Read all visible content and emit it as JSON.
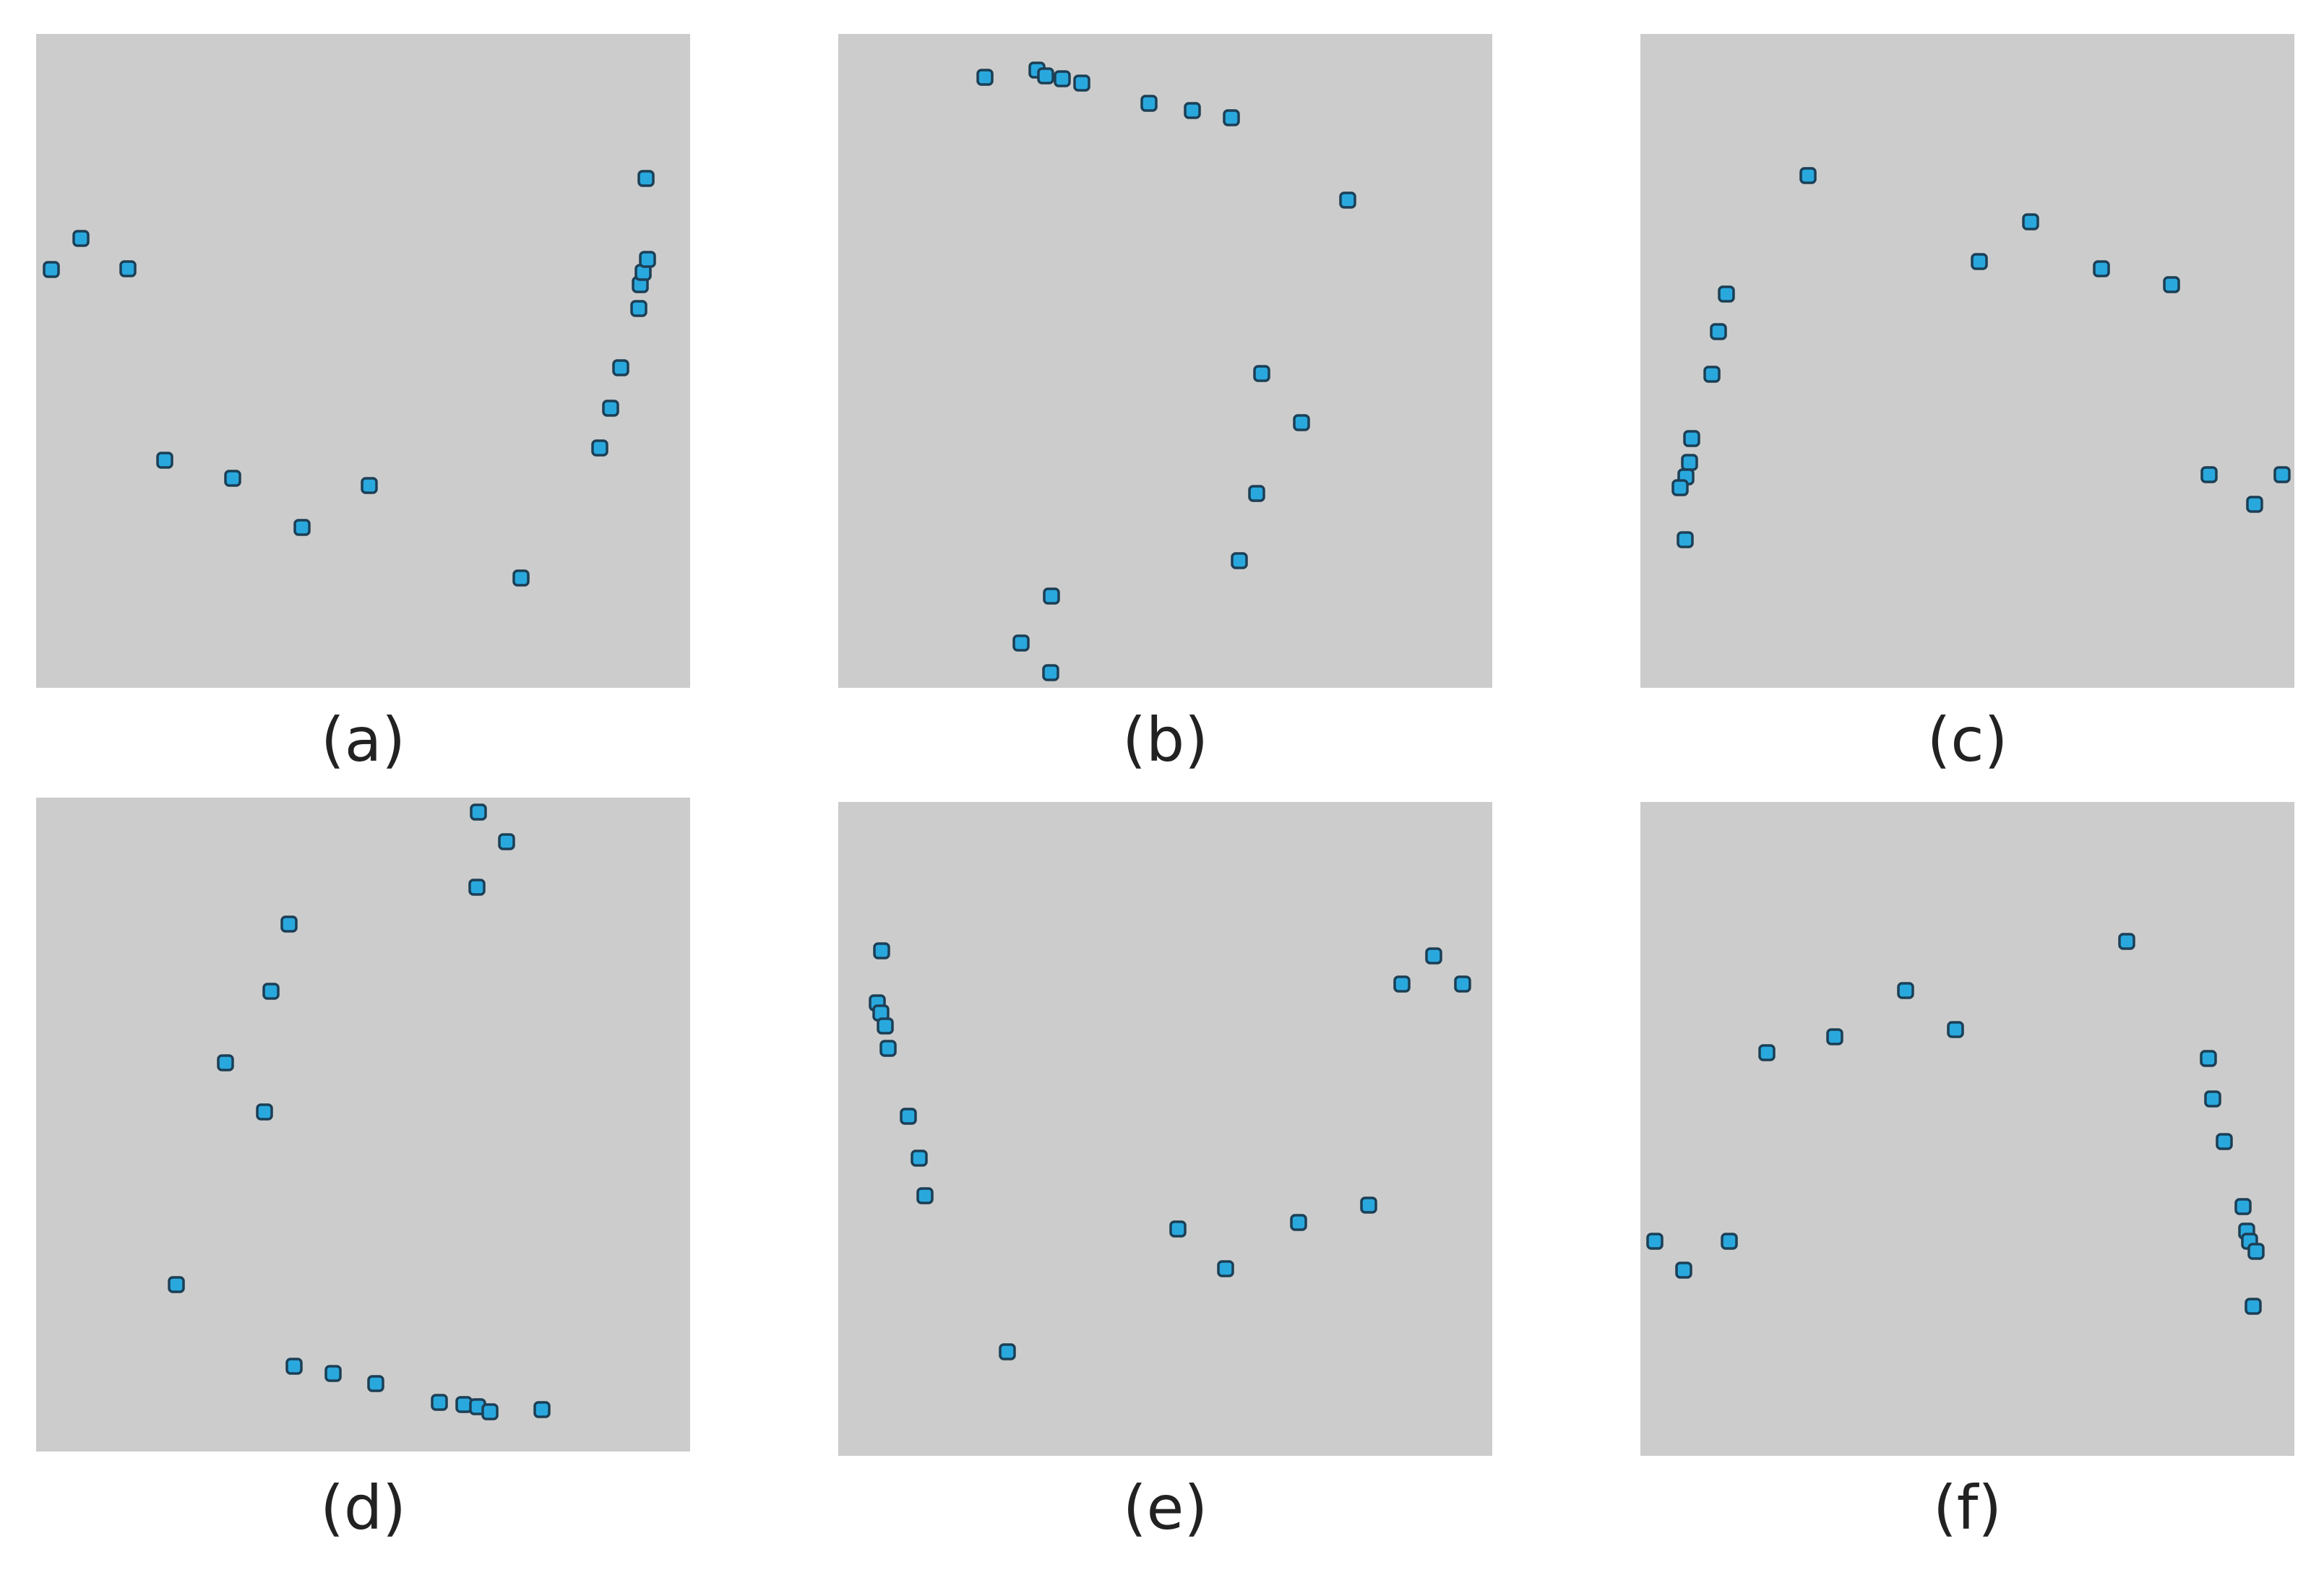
{
  "colors": {
    "panel_bg": "#cccccc",
    "marker_fill": "#29a8de",
    "marker_stroke": "#1c3f55"
  },
  "marker_shape": "square-marker-icon",
  "panels": [
    {
      "label": "(a)",
      "points": [
        [
          21,
          326
        ],
        [
          62,
          283
        ],
        [
          127,
          325
        ],
        [
          178,
          590
        ],
        [
          272,
          615
        ],
        [
          368,
          683
        ],
        [
          461,
          625
        ],
        [
          671,
          753
        ],
        [
          780,
          573
        ],
        [
          795,
          518
        ],
        [
          809,
          462
        ],
        [
          834,
          380
        ],
        [
          836,
          347
        ],
        [
          840,
          330
        ],
        [
          846,
          312
        ],
        [
          844,
          200
        ]
      ]
    },
    {
      "label": "(b)",
      "points": [
        [
          203,
          60
        ],
        [
          275,
          50
        ],
        [
          287,
          58
        ],
        [
          310,
          62
        ],
        [
          337,
          68
        ],
        [
          430,
          96
        ],
        [
          490,
          106
        ],
        [
          544,
          116
        ],
        [
          705,
          230
        ],
        [
          586,
          470
        ],
        [
          641,
          538
        ],
        [
          579,
          636
        ],
        [
          555,
          729
        ],
        [
          295,
          778
        ],
        [
          253,
          843
        ],
        [
          294,
          884
        ]
      ]
    },
    {
      "label": "(c)",
      "points": [
        [
          232,
          196
        ],
        [
          469,
          315
        ],
        [
          540,
          260
        ],
        [
          638,
          325
        ],
        [
          735,
          347
        ],
        [
          119,
          360
        ],
        [
          108,
          412
        ],
        [
          99,
          471
        ],
        [
          71,
          560
        ],
        [
          68,
          593
        ],
        [
          63,
          613
        ],
        [
          55,
          628
        ],
        [
          62,
          700
        ],
        [
          787,
          610
        ],
        [
          850,
          651
        ],
        [
          888,
          610
        ]
      ]
    },
    {
      "label": "(d)",
      "points": [
        [
          612,
          20
        ],
        [
          651,
          61
        ],
        [
          610,
          124
        ],
        [
          350,
          175
        ],
        [
          325,
          268
        ],
        [
          262,
          367
        ],
        [
          316,
          435
        ],
        [
          194,
          674
        ],
        [
          357,
          787
        ],
        [
          411,
          797
        ],
        [
          470,
          811
        ],
        [
          558,
          837
        ],
        [
          592,
          840
        ],
        [
          611,
          843
        ],
        [
          628,
          850
        ],
        [
          700,
          847
        ]
      ]
    },
    {
      "label": "(e)",
      "points": [
        [
          60,
          206
        ],
        [
          54,
          278
        ],
        [
          59,
          292
        ],
        [
          65,
          310
        ],
        [
          69,
          341
        ],
        [
          97,
          435
        ],
        [
          112,
          493
        ],
        [
          120,
          545
        ],
        [
          234,
          761
        ],
        [
          470,
          591
        ],
        [
          536,
          646
        ],
        [
          637,
          582
        ],
        [
          734,
          558
        ],
        [
          780,
          252
        ],
        [
          824,
          213
        ],
        [
          864,
          252
        ]
      ]
    },
    {
      "label": "(f)",
      "points": [
        [
          20,
          608
        ],
        [
          60,
          648
        ],
        [
          123,
          608
        ],
        [
          175,
          347
        ],
        [
          269,
          325
        ],
        [
          367,
          261
        ],
        [
          436,
          315
        ],
        [
          673,
          193
        ],
        [
          786,
          355
        ],
        [
          792,
          411
        ],
        [
          808,
          470
        ],
        [
          834,
          560
        ],
        [
          839,
          594
        ],
        [
          843,
          608
        ],
        [
          852,
          622
        ],
        [
          848,
          698
        ]
      ]
    }
  ]
}
